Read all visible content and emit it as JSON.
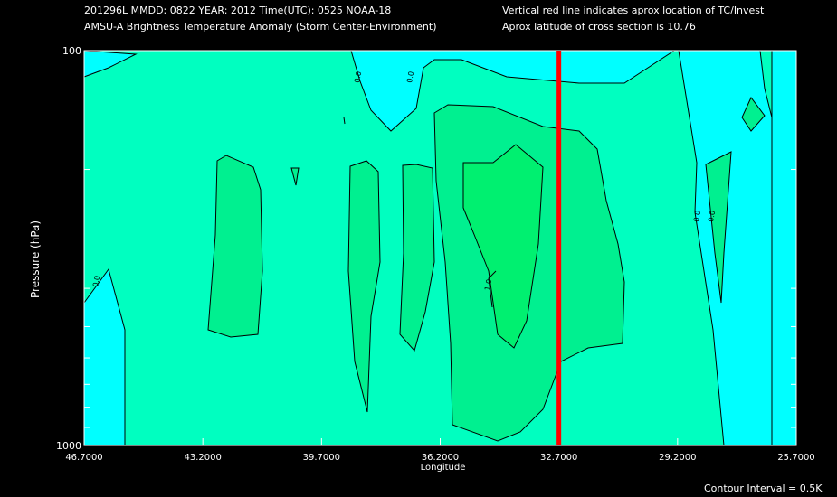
{
  "header": {
    "line1_left": "201296L  MMDD: 0822 YEAR: 2012 Time(UTC): 0525 NOAA-18",
    "line2_left": "AMSU-A Brightness Temperature Anomaly (Storm Center-Environment)",
    "line1_right": "Vertical red line indicates aprox location of TC/Invest",
    "line2_right": "Aprox latitude of cross section is 10.76"
  },
  "footer": {
    "contour_interval": "Contour Interval = 0.5K"
  },
  "colors": {
    "background": "#000000",
    "level_0": "#00ffff",
    "level_0_5": "#00ffc0",
    "level_1": "#00f090",
    "level_1_5": "#00f070",
    "tc_line": "#ff0000",
    "contour": "#000000"
  },
  "chart_data": {
    "type": "heatmap",
    "title": "AMSU-A Brightness Temperature Anomaly (Storm Center-Environment)",
    "xlabel": "Longitude",
    "ylabel": "Pressure (hPa)",
    "x_range": [
      46.7,
      25.7
    ],
    "y_range": [
      100,
      1000
    ],
    "y_scale": "log",
    "x_ticks": [
      "46.7000",
      "43.2000",
      "39.7000",
      "36.2000",
      "32.7000",
      "29.2000",
      "25.7000"
    ],
    "y_ticks": [
      "100",
      "1000"
    ],
    "tc_longitude": 32.7,
    "contour_labels": [
      "0.0",
      "0.0",
      "0.0",
      "0.0",
      "0.0",
      "1.0"
    ],
    "regions": [
      {
        "level": 0.0,
        "description": "below 0.5K anomaly"
      },
      {
        "level": 0.5,
        "description": "0.5K to 1.0K anomaly"
      },
      {
        "level": 1.0,
        "description": "1.0K to 1.5K anomaly"
      },
      {
        "level": 1.5,
        "description": "above 1.5K anomaly"
      }
    ]
  }
}
